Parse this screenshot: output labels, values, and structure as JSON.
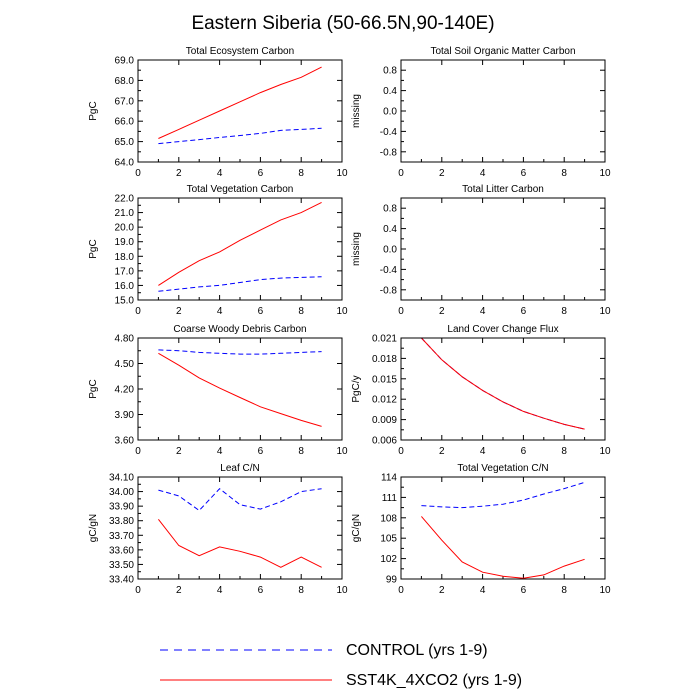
{
  "title": "Eastern Siberia (50-66.5N,90-140E)",
  "colors": {
    "control": "#0000ff",
    "sst4k": "#ff0000",
    "axis": "#000000"
  },
  "legend": [
    {
      "label": "CONTROL (yrs 1-9)",
      "series": "control",
      "style": "dashed"
    },
    {
      "label": "SST4K_4XCO2 (yrs 1-9)",
      "series": "sst4k",
      "style": "solid"
    }
  ],
  "chart_data": [
    {
      "type": "line",
      "title": "Total Ecosystem Carbon",
      "ylabel": "PgC",
      "xlim": [
        0,
        10
      ],
      "ylim": [
        64.0,
        69.0
      ],
      "xticks": [
        "0",
        "2",
        "4",
        "6",
        "8",
        "10"
      ],
      "yticks": [
        "64.0",
        "65.0",
        "66.0",
        "67.0",
        "68.0",
        "69.0"
      ],
      "x": [
        1,
        2,
        3,
        4,
        5,
        6,
        7,
        8,
        9
      ],
      "series": [
        {
          "name": "CONTROL (yrs 1-9)",
          "key": "control",
          "values": [
            64.9,
            65.0,
            65.1,
            65.2,
            65.3,
            65.4,
            65.55,
            65.6,
            65.65
          ]
        },
        {
          "name": "SST4K_4XCO2 (yrs 1-9)",
          "key": "sst4k",
          "values": [
            65.15,
            65.6,
            66.05,
            66.5,
            66.95,
            67.4,
            67.8,
            68.15,
            68.65
          ]
        }
      ]
    },
    {
      "type": "line",
      "title": "Total Soil Organic Matter Carbon",
      "ylabel": "missing",
      "xlim": [
        0,
        10
      ],
      "ylim": [
        -1.0,
        1.0
      ],
      "xticks": [
        "0",
        "2",
        "4",
        "6",
        "8",
        "10"
      ],
      "yticks": [
        "-0.8",
        "-0.4",
        "0.0",
        "0.4",
        "0.8"
      ],
      "x": [],
      "series": []
    },
    {
      "type": "line",
      "title": "Total Vegetation Carbon",
      "ylabel": "PgC",
      "xlim": [
        0,
        10
      ],
      "ylim": [
        15.0,
        22.0
      ],
      "xticks": [
        "0",
        "2",
        "4",
        "6",
        "8",
        "10"
      ],
      "yticks": [
        "15.0",
        "16.0",
        "17.0",
        "18.0",
        "19.0",
        "20.0",
        "21.0",
        "22.0"
      ],
      "x": [
        1,
        2,
        3,
        4,
        5,
        6,
        7,
        8,
        9
      ],
      "series": [
        {
          "name": "CONTROL (yrs 1-9)",
          "key": "control",
          "values": [
            15.6,
            15.75,
            15.9,
            16.0,
            16.2,
            16.4,
            16.5,
            16.55,
            16.6
          ]
        },
        {
          "name": "SST4K_4XCO2 (yrs 1-9)",
          "key": "sst4k",
          "values": [
            16.0,
            16.9,
            17.7,
            18.3,
            19.1,
            19.8,
            20.5,
            21.0,
            21.7
          ]
        }
      ]
    },
    {
      "type": "line",
      "title": "Total Litter Carbon",
      "ylabel": "missing",
      "xlim": [
        0,
        10
      ],
      "ylim": [
        -1.0,
        1.0
      ],
      "xticks": [
        "0",
        "2",
        "4",
        "6",
        "8",
        "10"
      ],
      "yticks": [
        "-0.8",
        "-0.4",
        "0.0",
        "0.4",
        "0.8"
      ],
      "x": [],
      "series": []
    },
    {
      "type": "line",
      "title": "Coarse Woody Debris Carbon",
      "ylabel": "PgC",
      "xlim": [
        0,
        10
      ],
      "ylim": [
        3.6,
        4.8
      ],
      "xticks": [
        "0",
        "2",
        "4",
        "6",
        "8",
        "10"
      ],
      "yticks": [
        "3.60",
        "3.90",
        "4.20",
        "4.50",
        "4.80"
      ],
      "x": [
        1,
        2,
        3,
        4,
        5,
        6,
        7,
        8,
        9
      ],
      "series": [
        {
          "name": "CONTROL (yrs 1-9)",
          "key": "control",
          "values": [
            4.66,
            4.65,
            4.63,
            4.62,
            4.61,
            4.61,
            4.62,
            4.63,
            4.64
          ]
        },
        {
          "name": "SST4K_4XCO2 (yrs 1-9)",
          "key": "sst4k",
          "values": [
            4.62,
            4.48,
            4.33,
            4.21,
            4.1,
            3.99,
            3.91,
            3.83,
            3.76
          ]
        }
      ]
    },
    {
      "type": "line",
      "title": "Land Cover Change Flux",
      "ylabel": "PgC/y",
      "xlim": [
        0,
        10
      ],
      "ylim": [
        0.006,
        0.021
      ],
      "xticks": [
        "0",
        "2",
        "4",
        "6",
        "8",
        "10"
      ],
      "yticks": [
        "0.006",
        "0.009",
        "0.012",
        "0.015",
        "0.018",
        "0.021"
      ],
      "x": [
        1,
        2,
        3,
        4,
        5,
        6,
        7,
        8,
        9
      ],
      "series": [
        {
          "name": "CONTROL (yrs 1-9)",
          "key": "control",
          "values": [
            0.021,
            0.0178,
            0.0153,
            0.0133,
            0.0116,
            0.0102,
            0.0092,
            0.0083,
            0.0076
          ]
        },
        {
          "name": "SST4K_4XCO2 (yrs 1-9)",
          "key": "sst4k",
          "values": [
            0.021,
            0.0178,
            0.0153,
            0.0133,
            0.0116,
            0.0102,
            0.0092,
            0.0083,
            0.0076
          ]
        }
      ]
    },
    {
      "type": "line",
      "title": "Leaf C/N",
      "ylabel": "gC/gN",
      "xlim": [
        0,
        10
      ],
      "ylim": [
        33.4,
        34.1
      ],
      "xticks": [
        "0",
        "2",
        "4",
        "6",
        "8",
        "10"
      ],
      "yticks": [
        "33.40",
        "33.50",
        "33.60",
        "33.70",
        "33.80",
        "33.90",
        "34.00",
        "34.10"
      ],
      "x": [
        1,
        2,
        3,
        4,
        5,
        6,
        7,
        8,
        9
      ],
      "series": [
        {
          "name": "CONTROL (yrs 1-9)",
          "key": "control",
          "values": [
            34.01,
            33.97,
            33.87,
            34.02,
            33.91,
            33.88,
            33.93,
            34.0,
            34.02
          ]
        },
        {
          "name": "SST4K_4XCO2 (yrs 1-9)",
          "key": "sst4k",
          "values": [
            33.81,
            33.63,
            33.56,
            33.62,
            33.59,
            33.55,
            33.48,
            33.55,
            33.48
          ]
        }
      ]
    },
    {
      "type": "line",
      "title": "Total Vegetation C/N",
      "ylabel": "gC/gN",
      "xlim": [
        0,
        10
      ],
      "ylim": [
        99,
        114
      ],
      "xticks": [
        "0",
        "2",
        "4",
        "6",
        "8",
        "10"
      ],
      "yticks": [
        "99",
        "102",
        "105",
        "108",
        "111",
        "114"
      ],
      "x": [
        1,
        2,
        3,
        4,
        5,
        6,
        7,
        8,
        9
      ],
      "series": [
        {
          "name": "CONTROL (yrs 1-9)",
          "key": "control",
          "values": [
            109.8,
            109.6,
            109.5,
            109.7,
            110.0,
            110.6,
            111.5,
            112.3,
            113.2
          ]
        },
        {
          "name": "SST4K_4XCO2 (yrs 1-9)",
          "key": "sst4k",
          "values": [
            108.2,
            104.7,
            101.5,
            100.0,
            99.4,
            99.1,
            99.6,
            100.9,
            101.9
          ]
        }
      ]
    }
  ]
}
